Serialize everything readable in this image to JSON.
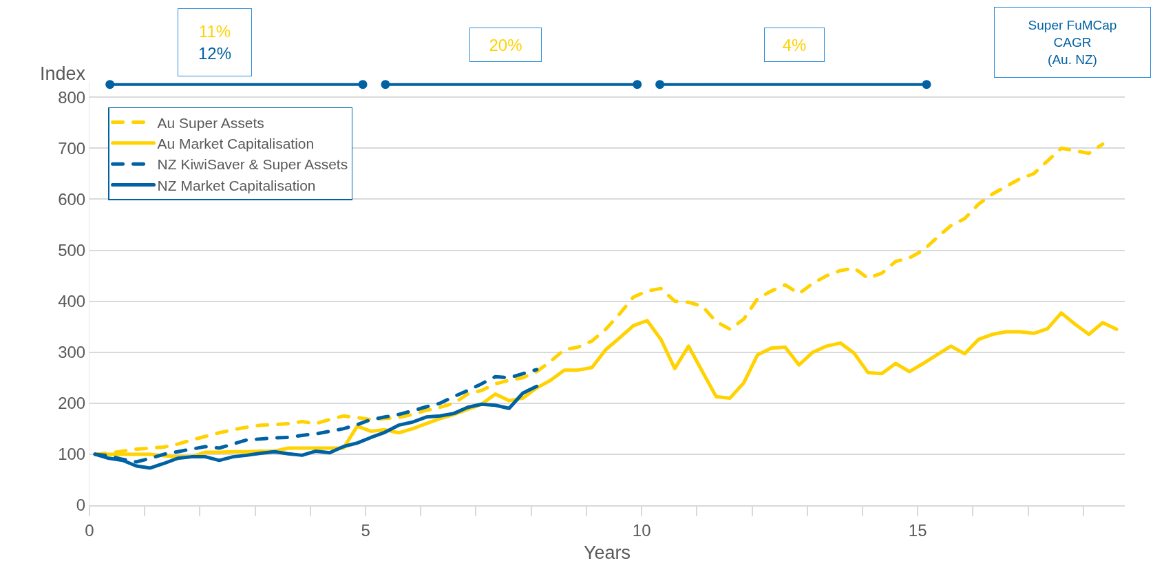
{
  "chart_data": {
    "type": "line",
    "xlabel": "Years",
    "ylabel": "Index",
    "x": [
      0.1,
      0.35,
      0.6,
      0.85,
      1.1,
      1.35,
      1.6,
      1.85,
      2.1,
      2.35,
      2.6,
      2.85,
      3.1,
      3.35,
      3.6,
      3.85,
      4.1,
      4.35,
      4.6,
      4.85,
      5.1,
      5.35,
      5.6,
      5.85,
      6.1,
      6.35,
      6.6,
      6.85,
      7.1,
      7.35,
      7.6,
      7.85,
      8.1,
      8.35,
      8.6,
      8.85,
      9.1,
      9.35,
      9.6,
      9.85,
      10.1,
      10.35,
      10.6,
      10.85,
      11.1,
      11.35,
      11.6,
      11.85,
      12.1,
      12.35,
      12.6,
      12.85,
      13.1,
      13.35,
      13.6,
      13.85,
      14.1,
      14.35,
      14.6,
      14.85,
      15.1,
      15.35,
      15.6,
      15.85,
      16.1,
      16.35,
      16.6,
      16.85,
      17.1,
      17.35,
      17.6,
      17.85,
      18.1,
      18.35,
      18.6
    ],
    "series": [
      {
        "name": "Au Super Assets",
        "color": "#ffd200",
        "line_style": "dashed",
        "values": [
          100,
          102,
          106,
          110,
          112,
          114,
          120,
          128,
          135,
          142,
          148,
          153,
          157,
          158,
          160,
          164,
          160,
          168,
          175,
          172,
          168,
          170,
          172,
          178,
          186,
          192,
          200,
          218,
          225,
          238,
          245,
          250,
          262,
          282,
          305,
          310,
          322,
          345,
          375,
          408,
          420,
          425,
          400,
          398,
          390,
          360,
          345,
          365,
          405,
          420,
          432,
          415,
          435,
          450,
          460,
          465,
          445,
          455,
          478,
          485,
          500,
          525,
          548,
          562,
          590,
          610,
          625,
          640,
          650,
          675,
          700,
          695,
          690,
          708,
          null
        ]
      },
      {
        "name": "Au Market Capitalisation",
        "color": "#ffd200",
        "line_style": "solid",
        "values": [
          100,
          100,
          100,
          100,
          100,
          97,
          95,
          95,
          104,
          104,
          105,
          105,
          106,
          106,
          112,
          112,
          112,
          112,
          112,
          155,
          145,
          148,
          142,
          150,
          160,
          170,
          178,
          188,
          198,
          218,
          205,
          210,
          230,
          245,
          265,
          265,
          270,
          305,
          328,
          352,
          362,
          325,
          268,
          312,
          262,
          213,
          210,
          240,
          295,
          308,
          310,
          275,
          300,
          312,
          318,
          298,
          260,
          258,
          278,
          262,
          278,
          295,
          312,
          297,
          325,
          335,
          340,
          340,
          337,
          346,
          377,
          355,
          335,
          358,
          345
        ]
      },
      {
        "name": "NZ KiwiSaver & Super Assets",
        "color": "#0062a3",
        "line_style": "dashed",
        "values": [
          100,
          97,
          90,
          85,
          92,
          100,
          105,
          110,
          115,
          112,
          120,
          128,
          130,
          132,
          133,
          137,
          140,
          145,
          150,
          158,
          168,
          173,
          178,
          185,
          193,
          200,
          213,
          225,
          238,
          252,
          250,
          258,
          266,
          null,
          null,
          null,
          null,
          null,
          null,
          null,
          null,
          null,
          null,
          null,
          null,
          null,
          null,
          null,
          null,
          null,
          null,
          null,
          null,
          null,
          null,
          null,
          null,
          null,
          null,
          null,
          null,
          null,
          null,
          null,
          null,
          null,
          null,
          null,
          null,
          null,
          null,
          null,
          null,
          null,
          null
        ]
      },
      {
        "name": "NZ Market Capitalisation",
        "color": "#0062a3",
        "line_style": "solid",
        "values": [
          100,
          92,
          88,
          77,
          73,
          82,
          92,
          95,
          95,
          88,
          95,
          98,
          102,
          105,
          101,
          98,
          106,
          103,
          115,
          122,
          133,
          143,
          157,
          163,
          173,
          175,
          180,
          192,
          198,
          196,
          190,
          220,
          233,
          null,
          null,
          null,
          null,
          null,
          null,
          null,
          null,
          null,
          null,
          null,
          null,
          null,
          null,
          null,
          null,
          null,
          null,
          null,
          null,
          null,
          null,
          null,
          null,
          null,
          null,
          null,
          null,
          null,
          null,
          null,
          null,
          null,
          null,
          null,
          null,
          null,
          null,
          null,
          null,
          null,
          null
        ]
      },
      {
        "color": "#0062a3",
        "line_style": "solid",
        "marker": "circle",
        "x": [
          0.37,
          4.95
        ],
        "values": [
          825,
          825
        ]
      },
      {
        "color": "#0062a3",
        "line_style": "solid",
        "marker": "circle",
        "x": [
          5.36,
          9.92
        ],
        "values": [
          825,
          825
        ]
      },
      {
        "color": "#0062a3",
        "line_style": "solid",
        "marker": "circle",
        "x": [
          10.33,
          15.16
        ],
        "values": [
          825,
          825
        ]
      }
    ],
    "annotations": [
      "11%",
      "12%",
      "20%",
      "4%",
      "Super FuMCap\nCAGR\n(Au. NZ)"
    ],
    "xlim": [
      0,
      18.75
    ],
    "xticks": [
      0,
      {
        "value": 1,
        "label": null
      },
      {
        "value": 2,
        "label": null
      },
      {
        "value": 3,
        "label": null
      },
      {
        "value": 4,
        "label": null
      },
      5,
      {
        "value": 6,
        "label": null
      },
      {
        "value": 7,
        "label": null
      },
      {
        "value": 8,
        "label": null
      },
      {
        "value": 9,
        "label": null
      },
      10,
      {
        "value": 11,
        "label": null
      },
      {
        "value": 12,
        "label": null
      },
      {
        "value": 13,
        "label": null
      },
      {
        "value": 14,
        "label": null
      },
      15,
      {
        "value": 16,
        "label": null
      },
      {
        "value": 17,
        "label": null
      },
      {
        "value": 18,
        "label": null
      }
    ],
    "ylim": [
      0,
      830
    ],
    "yticks": [
      0,
      100,
      200,
      300,
      400,
      500,
      600,
      700,
      800
    ],
    "grid": "y",
    "legend": "top left",
    "marker": "none"
  }
}
